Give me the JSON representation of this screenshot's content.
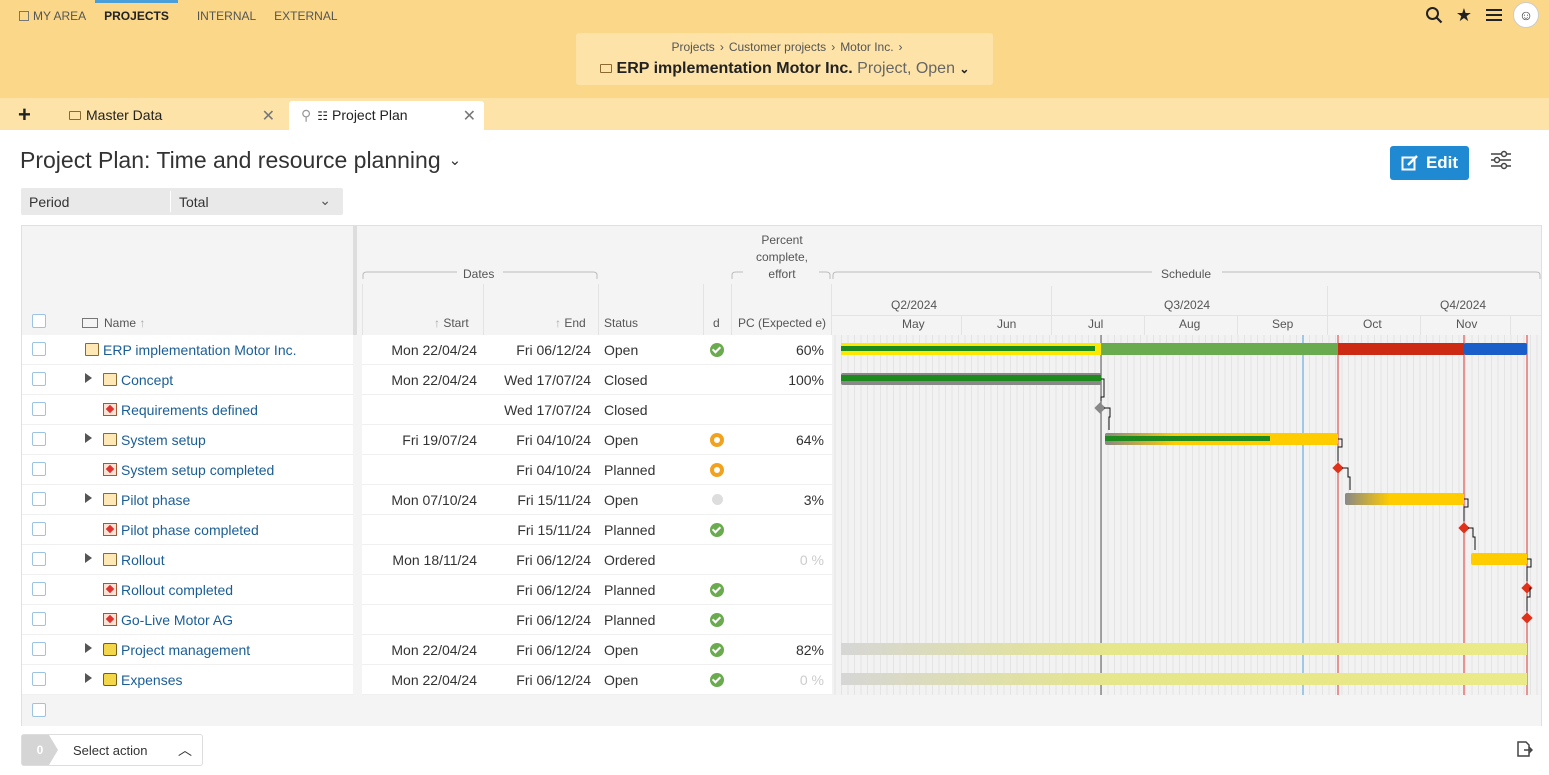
{
  "nav": {
    "items": [
      {
        "label": "MY AREA"
      },
      {
        "label": "PROJECTS"
      },
      {
        "label": "INTERNAL"
      },
      {
        "label": "EXTERNAL"
      }
    ]
  },
  "header": {
    "breadcrumb": [
      "Projects",
      "Customer projects",
      "Motor Inc."
    ],
    "project_title": "ERP implementation Motor Inc.",
    "project_subtitle": "Project, Open",
    "icons": [
      "search-icon",
      "star-icon",
      "menu-icon",
      "avatar"
    ]
  },
  "tabs": [
    {
      "label": "Master Data"
    },
    {
      "label": "Project Plan"
    }
  ],
  "page": {
    "title": "Project Plan: Time and resource planning",
    "edit_label": "Edit",
    "period_label": "Period",
    "period_value": "Total"
  },
  "table": {
    "group_dates": "Dates",
    "group_pc_line1": "Percent",
    "group_pc_line2": "complete,",
    "group_pc_line3": "effort",
    "group_schedule": "Schedule",
    "col_name": "Name",
    "col_start": "Start",
    "col_end": "End",
    "col_status": "Status",
    "col_d": "d",
    "col_pc": "PC (Expected e)",
    "quarters": [
      "Q2/2024",
      "Q3/2024",
      "Q4/2024"
    ],
    "months": [
      "May",
      "Jun",
      "Jul",
      "Aug",
      "Sep",
      "Oct",
      "Nov"
    ],
    "rows": [
      {
        "name": "ERP implementation Motor Inc.",
        "type": "folder",
        "level": 0,
        "expander": false,
        "start": "Mon 22/04/24",
        "end": "Fri 06/12/24",
        "status": "Open",
        "d": "ok",
        "pc": "60%",
        "pc_muted": false
      },
      {
        "name": "Concept",
        "type": "folder",
        "level": 1,
        "expander": true,
        "start": "Mon 22/04/24",
        "end": "Wed 17/07/24",
        "status": "Closed",
        "d": "",
        "pc": "100%",
        "pc_muted": false
      },
      {
        "name": "Requirements defined",
        "type": "milestone",
        "level": 1,
        "expander": false,
        "start": "",
        "end": "Wed 17/07/24",
        "status": "Closed",
        "d": "",
        "pc": "",
        "pc_muted": false
      },
      {
        "name": "System setup",
        "type": "folder",
        "level": 1,
        "expander": true,
        "start": "Fri 19/07/24",
        "end": "Fri 04/10/24",
        "status": "Open",
        "d": "warn",
        "pc": "64%",
        "pc_muted": false
      },
      {
        "name": "System setup completed",
        "type": "milestone",
        "level": 1,
        "expander": false,
        "start": "",
        "end": "Fri 04/10/24",
        "status": "Planned",
        "d": "warn",
        "pc": "",
        "pc_muted": false
      },
      {
        "name": "Pilot phase",
        "type": "folder",
        "level": 1,
        "expander": true,
        "start": "Mon 07/10/24",
        "end": "Fri 15/11/24",
        "status": "Open",
        "d": "none",
        "pc": "3%",
        "pc_muted": false
      },
      {
        "name": "Pilot phase completed",
        "type": "milestone",
        "level": 1,
        "expander": false,
        "start": "",
        "end": "Fri 15/11/24",
        "status": "Planned",
        "d": "ok",
        "pc": "",
        "pc_muted": false
      },
      {
        "name": "Rollout",
        "type": "folder",
        "level": 1,
        "expander": true,
        "start": "Mon 18/11/24",
        "end": "Fri 06/12/24",
        "status": "Ordered",
        "d": "",
        "pc": "0 %",
        "pc_muted": true
      },
      {
        "name": "Rollout completed",
        "type": "milestone",
        "level": 1,
        "expander": false,
        "start": "",
        "end": "Fri 06/12/24",
        "status": "Planned",
        "d": "ok",
        "pc": "",
        "pc_muted": false
      },
      {
        "name": "Go-Live Motor AG",
        "type": "milestone",
        "level": 1,
        "expander": false,
        "start": "",
        "end": "Fri 06/12/24",
        "status": "Planned",
        "d": "ok",
        "pc": "",
        "pc_muted": false
      },
      {
        "name": "Project management",
        "type": "pm",
        "level": 1,
        "expander": true,
        "start": "Mon 22/04/24",
        "end": "Fri 06/12/24",
        "status": "Open",
        "d": "ok",
        "pc": "82%",
        "pc_muted": false
      },
      {
        "name": "Expenses",
        "type": "pm",
        "level": 1,
        "expander": true,
        "start": "Mon 22/04/24",
        "end": "Fri 06/12/24",
        "status": "Open",
        "d": "ok",
        "pc": "0 %",
        "pc_muted": true
      }
    ]
  },
  "colors": {
    "accent": "#1f8ad1",
    "topbar": "#fbd78a",
    "green": "#6aab4f",
    "red": "#cc2a12",
    "yellow": "#ffcc00",
    "blue": "#1a5fc9"
  },
  "footer": {
    "selected_count": "0",
    "select_action": "Select action"
  }
}
